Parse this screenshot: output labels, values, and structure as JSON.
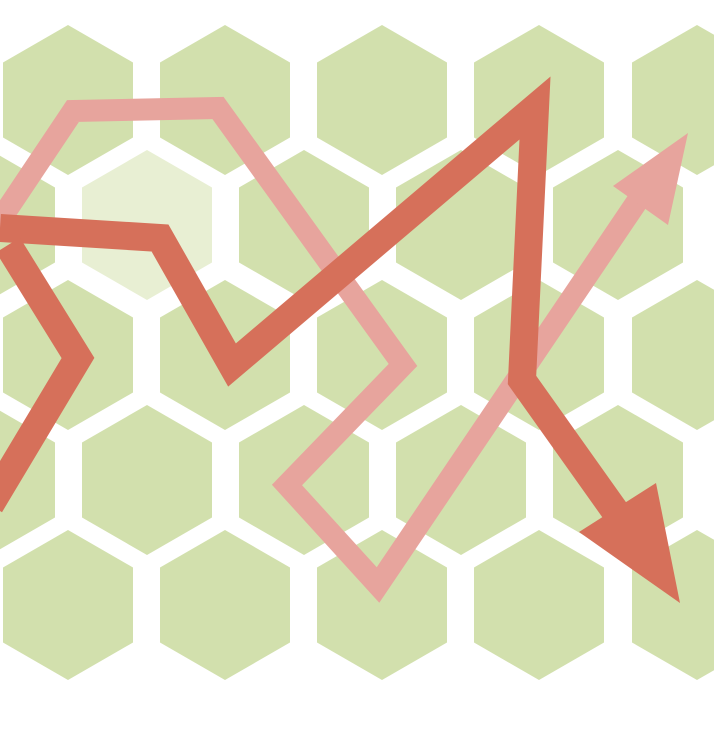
{
  "colors": {
    "background": "#ffffff",
    "hex_fill": "#d2e0ad",
    "hex_fill_light": "#e8efd3",
    "arrow_dark": "#d6705a",
    "arrow_light": "#e7a49d"
  },
  "grid": {
    "rows": 5,
    "columns": 5,
    "highlighted_cell": "row 2, column 1"
  },
  "paths": [
    {
      "name": "light-arrow",
      "color": "arrow_light",
      "has_arrowhead": true
    },
    {
      "name": "dark-arrow",
      "color": "arrow_dark",
      "has_arrowhead": true
    }
  ]
}
